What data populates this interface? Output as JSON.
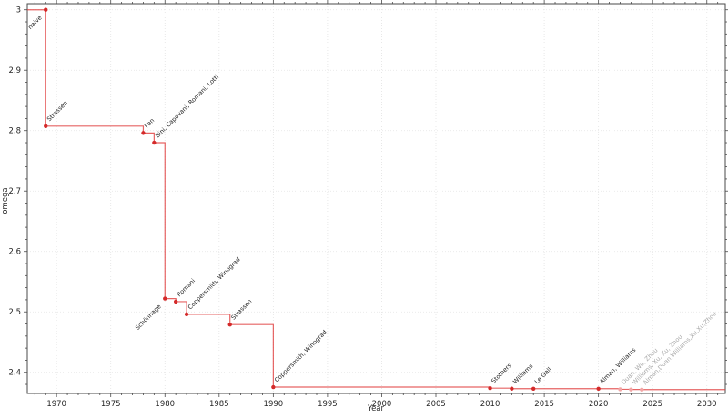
{
  "chart_data": {
    "type": "line",
    "subtype": "step-post",
    "title": "",
    "xlabel": "Year",
    "ylabel": "omega",
    "xlim": [
      1967.3,
      2031.7
    ],
    "ylim": [
      2.365,
      3.0101
    ],
    "x_major_ticks": [
      "1970",
      "1975",
      "1980",
      "1985",
      "1990",
      "1995",
      "2000",
      "2005",
      "2010",
      "2015",
      "2020",
      "2025",
      "2030"
    ],
    "x_minor_step": 1,
    "y_major_ticks": [
      "3",
      "2.9",
      "2.8",
      "2.7",
      "2.6",
      "2.5",
      "2.4"
    ],
    "y_minor_step": 0.02,
    "grid": true,
    "legend": false,
    "events": [
      {
        "year": 1969,
        "omega": 3.0,
        "label": "naive",
        "muted": false,
        "label_anchor": "end"
      },
      {
        "year": 1969,
        "omega": 2.8074,
        "label": "Strassen",
        "muted": false,
        "label_anchor": "start"
      },
      {
        "year": 1978,
        "omega": 2.796,
        "label": "Pan",
        "muted": false,
        "label_anchor": "start"
      },
      {
        "year": 1979,
        "omega": 2.78,
        "label": "Bini, Capovani, Romani, Lotti",
        "muted": false,
        "label_anchor": "start"
      },
      {
        "year": 1980,
        "omega": 2.522,
        "label": "Schönhage",
        "muted": false,
        "label_anchor": "end"
      },
      {
        "year": 1981,
        "omega": 2.517,
        "label": "Romani",
        "muted": false,
        "label_anchor": "start"
      },
      {
        "year": 1982,
        "omega": 2.496,
        "label": "Coppersmith, Winograd",
        "muted": false,
        "label_anchor": "start"
      },
      {
        "year": 1986,
        "omega": 2.479,
        "label": "Strassen",
        "muted": false,
        "label_anchor": "start"
      },
      {
        "year": 1990,
        "omega": 2.3755,
        "label": "Coppersmith, Winograd",
        "muted": false,
        "label_anchor": "start"
      },
      {
        "year": 2010,
        "omega": 2.3737,
        "label": "Stothers",
        "muted": false,
        "label_anchor": "start"
      },
      {
        "year": 2012,
        "omega": 2.3729,
        "label": "Williams",
        "muted": false,
        "label_anchor": "start"
      },
      {
        "year": 2014,
        "omega": 2.37287,
        "label": "Le Gall",
        "muted": false,
        "label_anchor": "start"
      },
      {
        "year": 2020,
        "omega": 2.37286,
        "label": "Alman, Williams",
        "muted": false,
        "label_anchor": "start"
      },
      {
        "year": 2022,
        "omega": 2.37187,
        "label": "Duan, Wu, Zhou",
        "muted": true,
        "label_anchor": "start"
      },
      {
        "year": 2023,
        "omega": 2.37155,
        "label": "Williams, Xu, Xu, Zhou",
        "muted": true,
        "label_anchor": "start"
      },
      {
        "year": 2024,
        "omega": 2.37134,
        "label": "Alman,Duan,Williams,Xu,Xu,Zhou",
        "muted": true,
        "label_anchor": "start"
      }
    ],
    "colors": {
      "line": "#e03c3c",
      "point": "#d42a2a",
      "muted_point": "#f2a7a7",
      "label": "#1f1f1f",
      "muted_label": "#a8a8a8",
      "grid": "#e3e3e3",
      "axis": "#4a4a4a",
      "background": "#ffffff"
    }
  }
}
